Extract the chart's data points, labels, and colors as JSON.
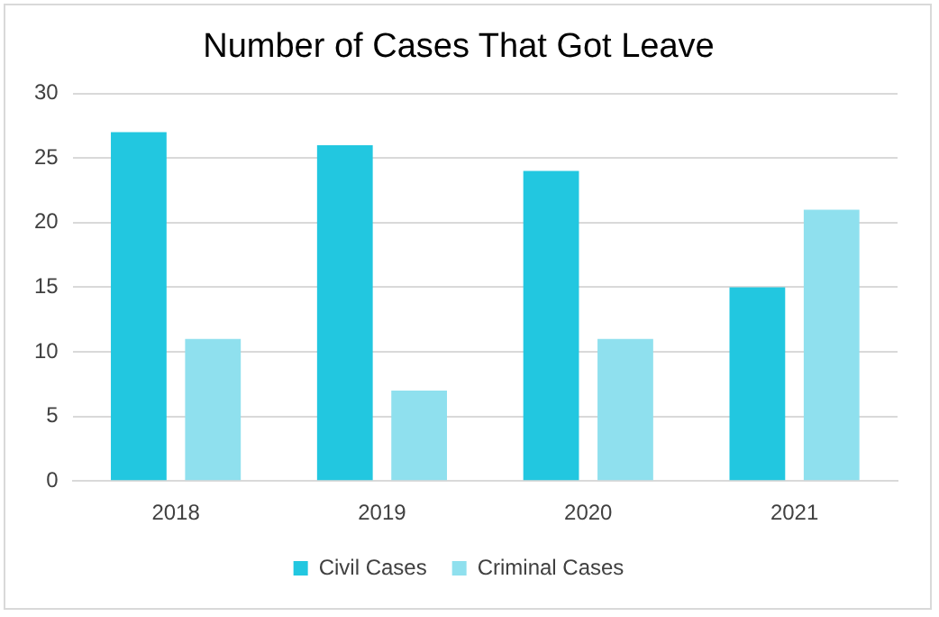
{
  "chart_data": {
    "type": "bar",
    "title": "Number of Cases That Got Leave",
    "categories": [
      "2018",
      "2019",
      "2020",
      "2021"
    ],
    "series": [
      {
        "name": "Civil Cases",
        "color": "#22c7e0",
        "values": [
          27,
          26,
          24,
          15
        ]
      },
      {
        "name": "Criminal Cases",
        "color": "#8fe0ee",
        "values": [
          11,
          7,
          11,
          21
        ]
      }
    ],
    "ylim": [
      0,
      30
    ],
    "yticks": [
      0,
      5,
      10,
      15,
      20,
      25,
      30
    ],
    "grid": "y",
    "legend": "bottom"
  }
}
